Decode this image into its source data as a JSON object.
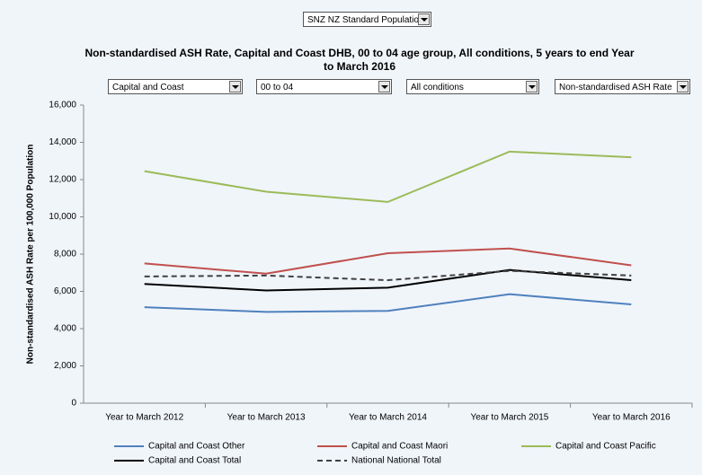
{
  "dropdowns": [
    "SNZ NZ Standard Population",
    "Capital and Coast",
    "00 to 04",
    "All conditions",
    "Non-standardised ASH Rate"
  ],
  "chart_data": {
    "type": "line",
    "title": "Non-standardised ASH Rate, Capital and Coast DHB, 00 to 04 age group, All conditions, 5 years to end Year to March 2016",
    "y_label": "Non-standardised ASH Rate per 100,000 Population",
    "categories": [
      "Year to March 2012",
      "Year to March 2013",
      "Year to March 2014",
      "Year to March 2015",
      "Year to March 2016"
    ],
    "ylim": [
      0,
      16000
    ],
    "yticks": [
      0,
      {
        "value": 2000,
        "label": "2,000"
      },
      {
        "value": 4000,
        "label": "4,000"
      },
      {
        "value": 6000,
        "label": "6,000"
      },
      {
        "value": 8000,
        "label": "8,000"
      },
      {
        "value": 10000,
        "label": "10,000"
      },
      {
        "value": 12000,
        "label": "12,000"
      },
      {
        "value": 14000,
        "label": "14,000"
      },
      {
        "value": 16000,
        "label": "16,000"
      }
    ],
    "series": [
      {
        "name": "Capital and Coast Other",
        "color": "#4f81bd",
        "values": [
          5150,
          4900,
          4950,
          5850,
          5300
        ]
      },
      {
        "name": "Capital and Coast Maori",
        "color": "#c0504d",
        "values": [
          7500,
          6950,
          8050,
          8300,
          7400
        ]
      },
      {
        "name": "Capital and Coast Pacific",
        "color": "#9bbb59",
        "values": [
          12450,
          11350,
          10800,
          13500,
          13200
        ]
      },
      {
        "name": "Capital and Coast Total",
        "color": "#000000",
        "values": [
          6400,
          6050,
          6200,
          7150,
          6600
        ]
      },
      {
        "name": "National National Total",
        "color": "#404040",
        "dashed": true,
        "values": [
          6800,
          6850,
          6600,
          7100,
          6850
        ]
      }
    ]
  }
}
